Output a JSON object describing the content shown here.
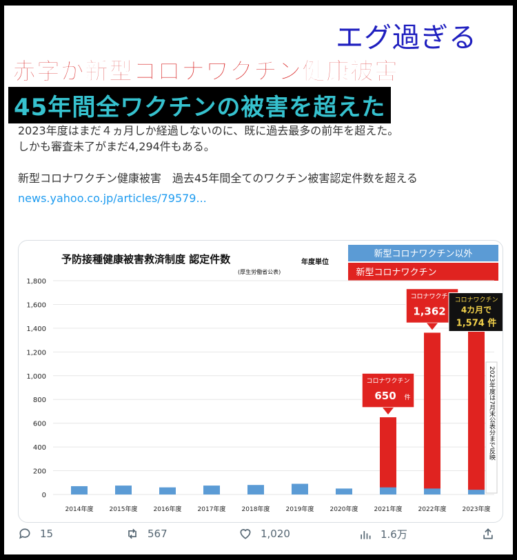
{
  "headline": {
    "top": "エグ過ぎる",
    "red": "赤字が新型コロナワクチン健康被害",
    "black_banner": "45年間全ワクチンの被害を超えた"
  },
  "tweet": {
    "line1": "2023年度はまだ４ヵ月しか経過しないのに、既に過去最多の前年を超えた。",
    "line2": "しかも審査未了がまだ4,294件もある。",
    "line3": "新型コロナワクチン健康被害　過去45年間全てのワクチン被害認定件数を超える",
    "link": "news.yahoo.co.jp/articles/79579..."
  },
  "actions": {
    "reply_count": "15",
    "retweet_count": "567",
    "like_count": "1,020",
    "view_count": "1.6万"
  },
  "colors": {
    "covid": "#e02320",
    "other": "#5b9bd5",
    "link": "#1d9bf0"
  },
  "chart_data": {
    "type": "bar",
    "title": "予防接種健康被害救済制度 認定件数",
    "subtitle": "(厚生労働省公表)",
    "unit_label": "年度単位",
    "categories": [
      "2014年度",
      "2015年度",
      "2016年度",
      "2017年度",
      "2018年度",
      "2019年度",
      "2020年度",
      "2021年度",
      "2022年度",
      "2023年度"
    ],
    "series": [
      {
        "name": "新型コロナワクチン以外",
        "values": [
          70,
          75,
          60,
          75,
          80,
          90,
          50,
          60,
          50,
          40
        ]
      },
      {
        "name": "新型コロナワクチン",
        "values": [
          0,
          0,
          0,
          0,
          0,
          0,
          0,
          650,
          1362,
          1574
        ]
      }
    ],
    "ylim": [
      0,
      1800
    ],
    "yticks": [
      "0",
      "200",
      "400",
      "600",
      "800",
      "1,000",
      "1,200",
      "1,400",
      "1,600",
      "1,800"
    ],
    "grid": true,
    "legend_position": "top-right",
    "annotations": [
      {
        "category": "2021年度",
        "line1": "コロナワクチン",
        "line2": "650",
        "suffix": "件"
      },
      {
        "category": "2022年度",
        "line1": "コロナワクチン",
        "line2": "1,362",
        "suffix": "件"
      },
      {
        "category": "2023年度",
        "line1": "コロナワクチン",
        "line2": "4カ月で",
        "line3": "1,574 件"
      }
    ],
    "side_note": "2023年度は7月末公表分まで反映"
  }
}
